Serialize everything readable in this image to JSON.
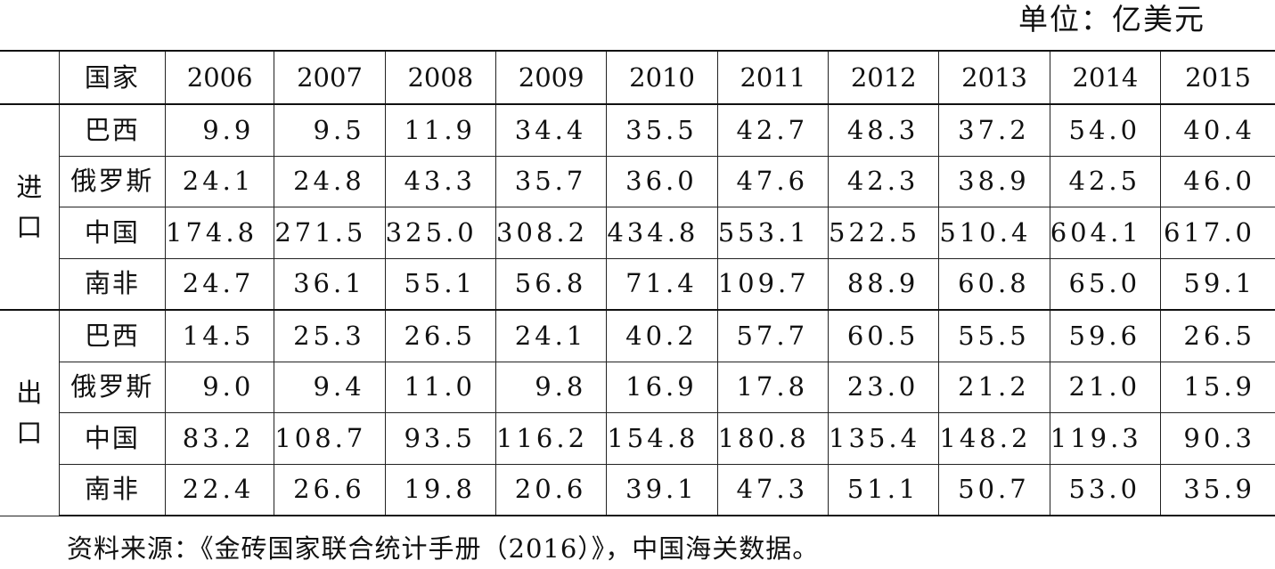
{
  "unit_label": "单位：亿美元",
  "table": {
    "header_label": "国家",
    "years": [
      "2006",
      "2007",
      "2008",
      "2009",
      "2010",
      "2011",
      "2012",
      "2013",
      "2014",
      "2015"
    ],
    "groups": [
      {
        "label": "进口",
        "rows": [
          {
            "country": "巴西",
            "values": [
              "9.9",
              "9.5",
              "11.9",
              "34.4",
              "35.5",
              "42.7",
              "48.3",
              "37.2",
              "54.0",
              "40.4"
            ]
          },
          {
            "country": "俄罗斯",
            "values": [
              "24.1",
              "24.8",
              "43.3",
              "35.7",
              "36.0",
              "47.6",
              "42.3",
              "38.9",
              "42.5",
              "46.0"
            ]
          },
          {
            "country": "中国",
            "values": [
              "174.8",
              "271.5",
              "325.0",
              "308.2",
              "434.8",
              "553.1",
              "522.5",
              "510.4",
              "604.1",
              "617.0"
            ]
          },
          {
            "country": "南非",
            "values": [
              "24.7",
              "36.1",
              "55.1",
              "56.8",
              "71.4",
              "109.7",
              "88.9",
              "60.8",
              "65.0",
              "59.1"
            ]
          }
        ]
      },
      {
        "label": "出口",
        "rows": [
          {
            "country": "巴西",
            "values": [
              "14.5",
              "25.3",
              "26.5",
              "24.1",
              "40.2",
              "57.7",
              "60.5",
              "55.5",
              "59.6",
              "26.5"
            ]
          },
          {
            "country": "俄罗斯",
            "values": [
              "9.0",
              "9.4",
              "11.0",
              "9.8",
              "16.9",
              "17.8",
              "23.0",
              "21.2",
              "21.0",
              "15.9"
            ]
          },
          {
            "country": "中国",
            "values": [
              "83.2",
              "108.7",
              "93.5",
              "116.2",
              "154.8",
              "180.8",
              "135.4",
              "148.2",
              "119.3",
              "90.3"
            ]
          },
          {
            "country": "南非",
            "values": [
              "22.4",
              "26.6",
              "19.8",
              "20.6",
              "39.1",
              "47.3",
              "51.1",
              "50.7",
              "53.0",
              "35.9"
            ]
          }
        ]
      }
    ]
  },
  "source_note": "资料来源：《金砖国家联合统计手册（2016）》，中国海关数据。"
}
